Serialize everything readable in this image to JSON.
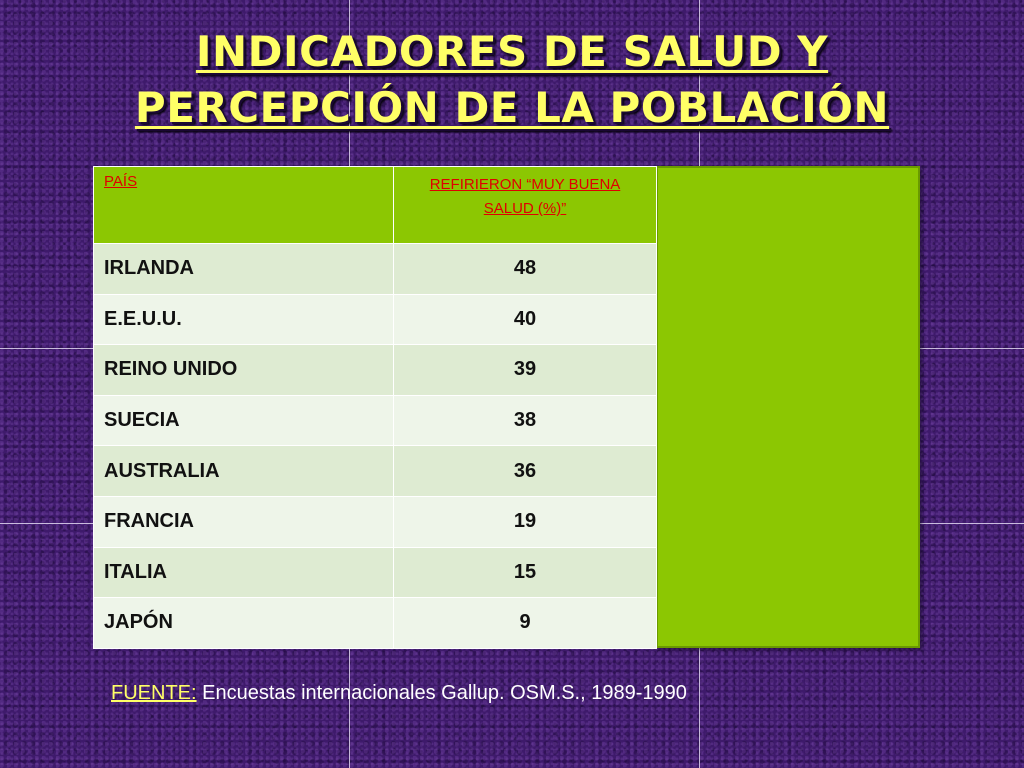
{
  "title": {
    "line1": "INDICADORES DE SALUD Y",
    "line2": "PERCEPCIÓN DE LA POBLACIÓN"
  },
  "table": {
    "headers": {
      "country": "PAÍS",
      "value": "REFIRIERON “MUY BUENA SALUD (%)”"
    },
    "rows": [
      {
        "country": "IRLANDA",
        "value": "48"
      },
      {
        "country": "E.E.U.U.",
        "value": "40"
      },
      {
        "country": "REINO UNIDO",
        "value": "39"
      },
      {
        "country": "SUECIA",
        "value": "38"
      },
      {
        "country": "AUSTRALIA",
        "value": "36"
      },
      {
        "country": "FRANCIA",
        "value": "19"
      },
      {
        "country": "ITALIA",
        "value": "15"
      },
      {
        "country": "JAPÓN",
        "value": "9"
      }
    ]
  },
  "source": {
    "label": "FUENTE:",
    "text": " Encuestas internacionales Gallup. OSM.S., 1989-1990"
  },
  "colors": {
    "background": "#3e1a6b",
    "title": "#ffff66",
    "header_bg": "#8cc702",
    "header_text": "#e00000",
    "row_odd": "#deebd2",
    "row_even": "#eef5e9",
    "side_panel": "#8cc702"
  }
}
